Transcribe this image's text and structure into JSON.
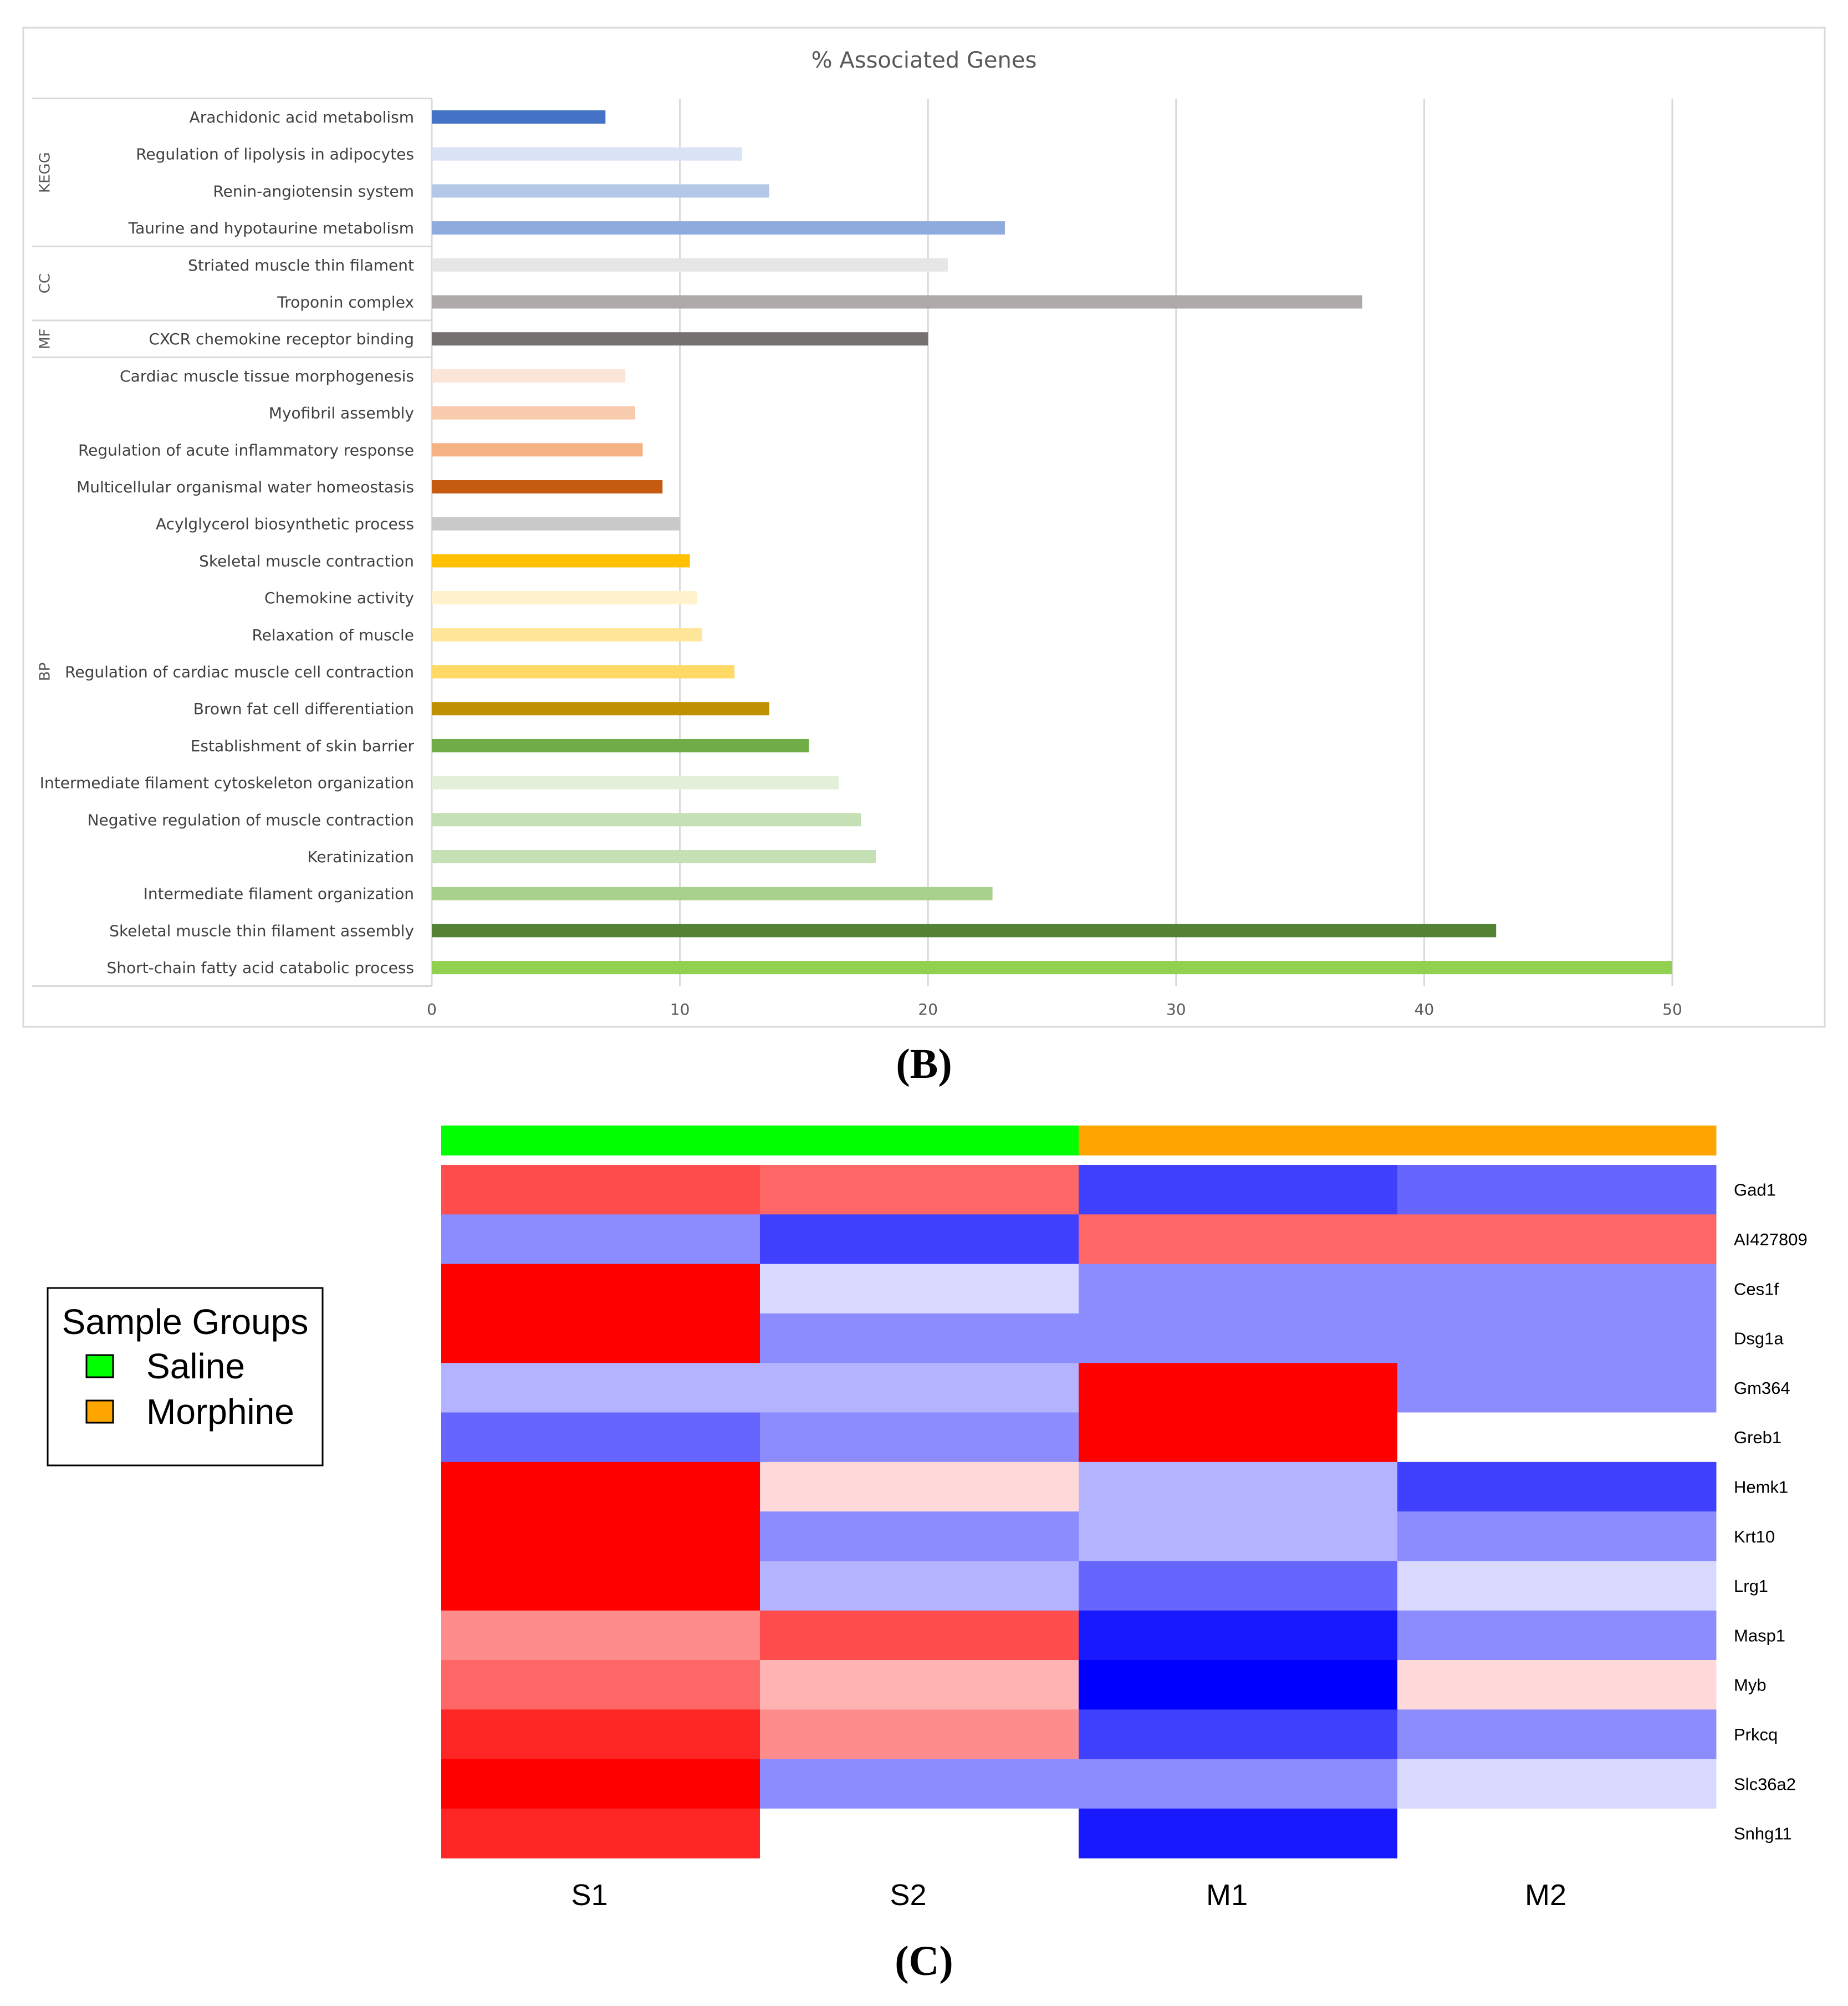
{
  "panel_b_label": "(B)",
  "panel_c_label": "(C)",
  "chart_data": [
    {
      "type": "bar",
      "orientation": "horizontal",
      "title": "% Associated Genes",
      "xlim": [
        0,
        50
      ],
      "xticks": [
        0,
        10,
        20,
        30,
        40,
        50
      ],
      "grid": true,
      "groups": [
        {
          "name": "KEGG",
          "start": 0,
          "count": 4
        },
        {
          "name": "CC",
          "start": 4,
          "count": 2
        },
        {
          "name": "MF",
          "start": 6,
          "count": 1
        },
        {
          "name": "BP",
          "start": 7,
          "count": 17
        }
      ],
      "categories": [
        "Arachidonic acid metabolism",
        "Regulation of lipolysis in adipocytes",
        "Renin-angiotensin system",
        "Taurine and hypotaurine metabolism",
        "Striated muscle thin filament",
        "Troponin complex",
        "CXCR chemokine receptor binding",
        "Cardiac muscle tissue morphogenesis",
        "Myofibril assembly",
        "Regulation of acute inflammatory response",
        "Multicellular organismal water homeostasis",
        "Acylglycerol biosynthetic process",
        "Skeletal muscle contraction",
        "Chemokine activity",
        "Relaxation of muscle",
        "Regulation of cardiac muscle cell contraction",
        "Brown fat cell differentiation",
        "Establishment of skin barrier",
        "Intermediate filament cytoskeleton organization",
        "Negative regulation of muscle contraction",
        "Keratinization",
        "Intermediate filament organization",
        "Skeletal muscle thin filament assembly",
        "Short-chain fatty acid catabolic process"
      ],
      "values": [
        7.0,
        12.5,
        13.6,
        23.1,
        20.8,
        37.5,
        20.0,
        7.8,
        8.2,
        8.5,
        9.3,
        10.0,
        10.4,
        10.7,
        10.9,
        12.2,
        13.6,
        15.2,
        16.4,
        17.3,
        17.9,
        22.6,
        42.9,
        50.0
      ],
      "colors": [
        "#4472c4",
        "#dae3f3",
        "#b4c7e7",
        "#8faadc",
        "#e7e6e6",
        "#aeaaaa",
        "#767171",
        "#fbe5d6",
        "#f8cbad",
        "#f4b183",
        "#c55a11",
        "#c9c9c9",
        "#ffc000",
        "#fff2cc",
        "#ffe699",
        "#ffd966",
        "#bf9000",
        "#70ad47",
        "#e2f0d9",
        "#c5e0b4",
        "#c5e0b4",
        "#a9d18e",
        "#548235",
        "#92d050"
      ]
    },
    {
      "type": "heatmap",
      "columns": [
        "S1",
        "S2",
        "M1",
        "M2"
      ],
      "column_groups": [
        "Saline",
        "Saline",
        "Morphine",
        "Morphine"
      ],
      "rows": [
        "Gad1",
        "AI427809",
        "Ces1f",
        "Dsg1a",
        "Gm364",
        "Greb1",
        "Hemk1",
        "Krt10",
        "Lrg1",
        "Masp1",
        "Myb",
        "Prkcq",
        "Slc36a2",
        "Snhg11"
      ],
      "values": [
        [
          0.7,
          0.6,
          -0.75,
          -0.6
        ],
        [
          -0.45,
          -0.75,
          0.6,
          0.6
        ],
        [
          1.0,
          -0.15,
          -0.45,
          -0.45
        ],
        [
          1.0,
          -0.45,
          -0.45,
          -0.45
        ],
        [
          -0.3,
          -0.3,
          1.0,
          -0.45
        ],
        [
          -0.6,
          -0.45,
          1.0,
          0.0
        ],
        [
          1.0,
          0.15,
          -0.3,
          -0.75
        ],
        [
          1.0,
          -0.45,
          -0.3,
          -0.45
        ],
        [
          1.0,
          -0.3,
          -0.6,
          -0.15
        ],
        [
          0.45,
          0.7,
          -0.9,
          -0.45
        ],
        [
          0.6,
          0.3,
          -1.0,
          0.15
        ],
        [
          0.85,
          0.45,
          -0.75,
          -0.45
        ],
        [
          1.0,
          -0.45,
          -0.45,
          -0.15
        ],
        [
          0.85,
          0.0,
          -0.9,
          0.0
        ]
      ],
      "color_scale": {
        "low": "#0000ff",
        "mid": "#ffffff",
        "high": "#ff0000"
      },
      "legend": {
        "title": "Sample Groups",
        "items": [
          {
            "label": "Saline",
            "color": "#00ff00"
          },
          {
            "label": "Morphine",
            "color": "#ffa500"
          }
        ]
      }
    }
  ]
}
